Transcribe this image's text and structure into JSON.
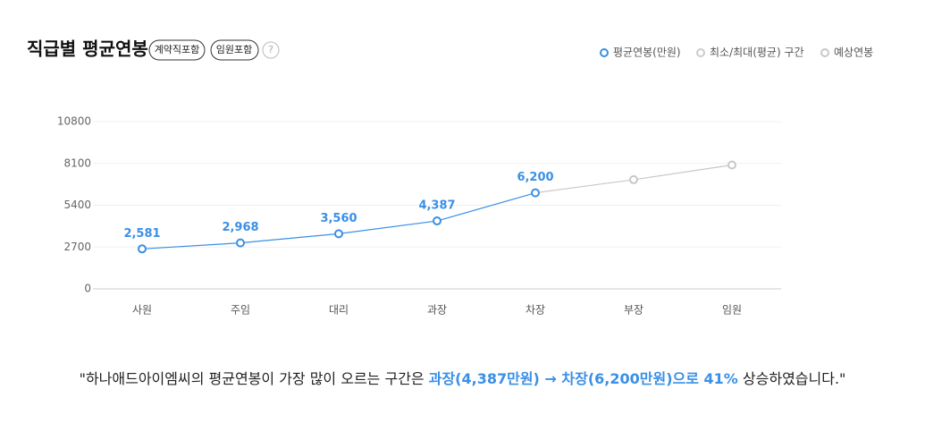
{
  "title": "직급별 평균연봉",
  "badges": [
    "계약직포함",
    "임원포함",
    "?"
  ],
  "legend_extra": [
    {
      "name": "최소/최대(평균) 구간",
      "color": "#cccccc"
    }
  ],
  "chart_data": {
    "type": "line",
    "categories": [
      "사원",
      "주임",
      "대리",
      "과장",
      "차장",
      "부장",
      "임원"
    ],
    "series": [
      {
        "name": "평균연봉(만원)",
        "color": "#3a8fe6",
        "values": [
          2581,
          2968,
          3560,
          4387,
          6200,
          null,
          null
        ],
        "value_labels": [
          "2,581",
          "2,968",
          "3,560",
          "4,387",
          "6,200",
          null,
          null
        ]
      },
      {
        "name": "예상연봉",
        "color": "#c8c8c8",
        "values": [
          null,
          null,
          null,
          null,
          6200,
          7050,
          8000
        ]
      }
    ],
    "ylim": [
      0,
      10800
    ],
    "yticks": [
      0,
      2700,
      5400,
      8100,
      10800
    ],
    "grid": true
  },
  "footnote": [
    "\"하나애드아이엠씨의 평균연봉이 가장 많이 오르는 구간은 ",
    "과장(4,387만원) → 차장(6,200만원)으로 41%",
    " 상승하였습니다.\""
  ]
}
